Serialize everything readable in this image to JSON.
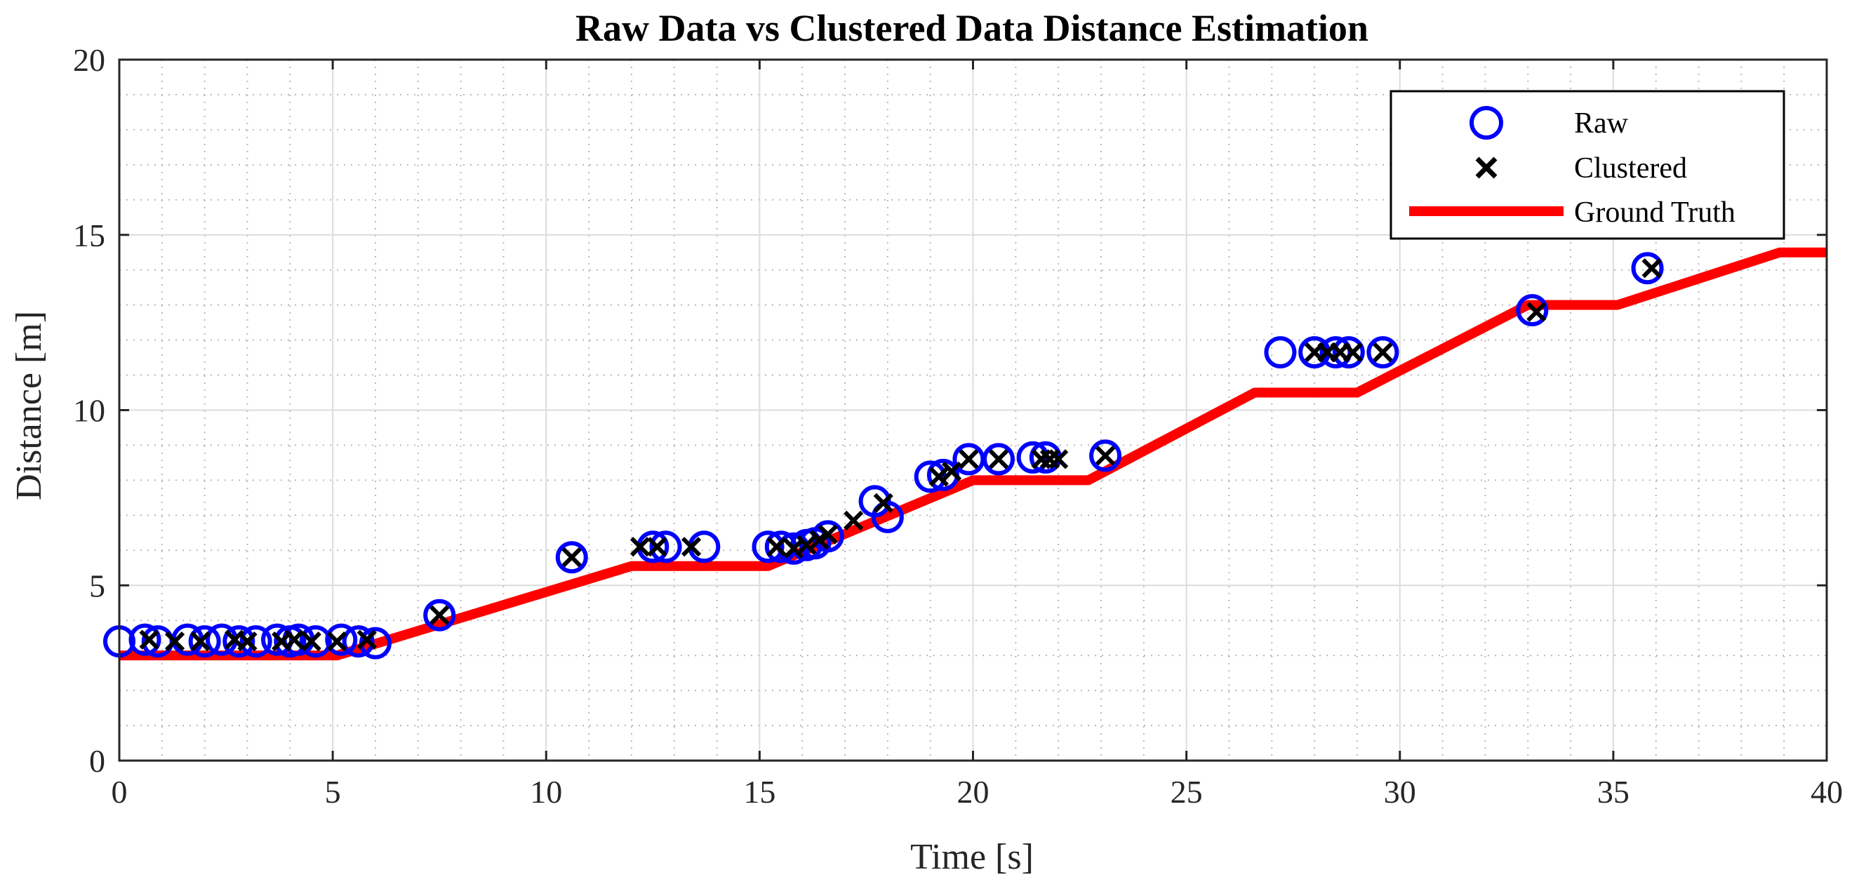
{
  "chart_data": {
    "type": "scatter",
    "title": "Raw Data vs Clustered Data Distance Estimation",
    "xlabel": "Time [s]",
    "ylabel": "Distance [m]",
    "xlim": [
      0,
      40
    ],
    "ylim": [
      0,
      20
    ],
    "x_ticks": [
      0,
      5,
      10,
      15,
      20,
      25,
      30,
      35,
      40
    ],
    "y_ticks": [
      0,
      5,
      10,
      15,
      20
    ],
    "grid": true,
    "minor_grid": true,
    "legend_position": "top-right",
    "legend": [
      "Raw",
      "Clustered",
      "Ground Truth"
    ],
    "series": [
      {
        "name": "Raw",
        "marker": "circle",
        "color": "#0000ff",
        "points": [
          [
            0.0,
            3.4
          ],
          [
            0.6,
            3.45
          ],
          [
            0.9,
            3.4
          ],
          [
            1.6,
            3.45
          ],
          [
            2.0,
            3.4
          ],
          [
            2.4,
            3.45
          ],
          [
            2.8,
            3.4
          ],
          [
            3.2,
            3.4
          ],
          [
            3.7,
            3.45
          ],
          [
            4.0,
            3.4
          ],
          [
            4.2,
            3.45
          ],
          [
            4.6,
            3.4
          ],
          [
            5.2,
            3.45
          ],
          [
            5.6,
            3.4
          ],
          [
            6.0,
            3.35
          ],
          [
            7.5,
            4.15
          ],
          [
            10.6,
            5.8
          ],
          [
            12.5,
            6.1
          ],
          [
            12.8,
            6.1
          ],
          [
            13.7,
            6.1
          ],
          [
            15.2,
            6.1
          ],
          [
            15.5,
            6.1
          ],
          [
            15.8,
            6.05
          ],
          [
            16.1,
            6.15
          ],
          [
            16.3,
            6.2
          ],
          [
            16.6,
            6.4
          ],
          [
            17.7,
            7.4
          ],
          [
            18.0,
            6.95
          ],
          [
            19.0,
            8.1
          ],
          [
            19.3,
            8.15
          ],
          [
            19.9,
            8.6
          ],
          [
            20.6,
            8.6
          ],
          [
            21.4,
            8.65
          ],
          [
            21.7,
            8.65
          ],
          [
            23.1,
            8.7
          ],
          [
            27.2,
            11.65
          ],
          [
            28.0,
            11.65
          ],
          [
            28.5,
            11.65
          ],
          [
            28.8,
            11.65
          ],
          [
            29.6,
            11.65
          ],
          [
            33.1,
            12.85
          ],
          [
            35.8,
            14.05
          ]
        ]
      },
      {
        "name": "Clustered",
        "marker": "x",
        "color": "#000000",
        "points": [
          [
            0.7,
            3.45
          ],
          [
            1.3,
            3.4
          ],
          [
            1.9,
            3.4
          ],
          [
            2.7,
            3.45
          ],
          [
            3.0,
            3.4
          ],
          [
            3.8,
            3.4
          ],
          [
            4.1,
            3.45
          ],
          [
            4.5,
            3.4
          ],
          [
            5.1,
            3.4
          ],
          [
            5.8,
            3.45
          ],
          [
            7.5,
            4.15
          ],
          [
            10.6,
            5.8
          ],
          [
            12.2,
            6.1
          ],
          [
            12.6,
            6.1
          ],
          [
            13.4,
            6.1
          ],
          [
            15.4,
            6.1
          ],
          [
            15.8,
            6.05
          ],
          [
            16.1,
            6.15
          ],
          [
            16.4,
            6.3
          ],
          [
            16.6,
            6.45
          ],
          [
            17.2,
            6.85
          ],
          [
            17.9,
            7.35
          ],
          [
            19.2,
            8.1
          ],
          [
            19.5,
            8.25
          ],
          [
            19.9,
            8.6
          ],
          [
            20.6,
            8.6
          ],
          [
            21.6,
            8.6
          ],
          [
            21.8,
            8.6
          ],
          [
            22.0,
            8.6
          ],
          [
            23.1,
            8.7
          ],
          [
            28.0,
            11.65
          ],
          [
            28.3,
            11.65
          ],
          [
            28.6,
            11.65
          ],
          [
            28.9,
            11.65
          ],
          [
            29.6,
            11.65
          ],
          [
            33.2,
            12.8
          ],
          [
            35.9,
            14.05
          ]
        ]
      },
      {
        "name": "Ground Truth",
        "marker": "line",
        "color": "#ff0000",
        "points": [
          [
            0,
            3.0
          ],
          [
            5.1,
            3.0
          ],
          [
            12.0,
            5.55
          ],
          [
            15.2,
            5.55
          ],
          [
            20.0,
            8.0
          ],
          [
            22.7,
            8.0
          ],
          [
            26.6,
            10.5
          ],
          [
            29.0,
            10.5
          ],
          [
            33.0,
            13.0
          ],
          [
            35.1,
            13.0
          ],
          [
            38.9,
            14.5
          ],
          [
            40,
            14.5
          ]
        ]
      }
    ]
  }
}
